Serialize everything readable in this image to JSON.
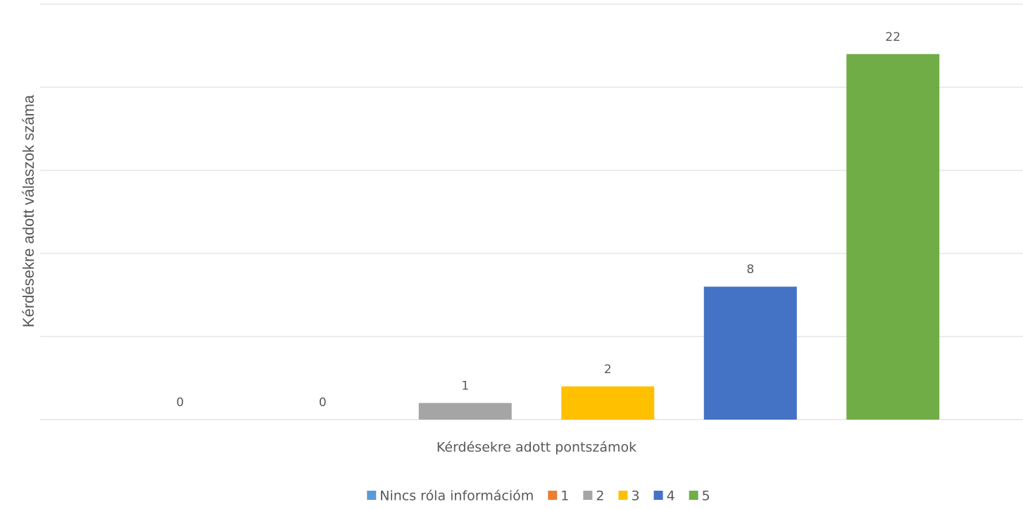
{
  "chart_data": {
    "type": "bar",
    "xlabel": "Kérdésekre adott pontszámok",
    "ylabel": "Kérdésekre adott válaszok száma",
    "categories": [
      null
    ],
    "series": [
      {
        "name": "Nincs róla információm",
        "color": "#5b9bd5",
        "values": [
          0
        ]
      },
      {
        "name": "1",
        "color": "#ed7d31",
        "values": [
          0
        ]
      },
      {
        "name": "2",
        "color": "#a5a5a5",
        "values": [
          1
        ]
      },
      {
        "name": "3",
        "color": "#ffc000",
        "values": [
          2
        ]
      },
      {
        "name": "4",
        "color": "#4472c4",
        "values": [
          8
        ]
      },
      {
        "name": "5",
        "color": "#70ad47",
        "values": [
          22
        ]
      }
    ],
    "ylim": [
      0,
      25
    ],
    "yticks": [
      0,
      5,
      10,
      15,
      20,
      25
    ],
    "grid": true,
    "legend": "bottom"
  }
}
